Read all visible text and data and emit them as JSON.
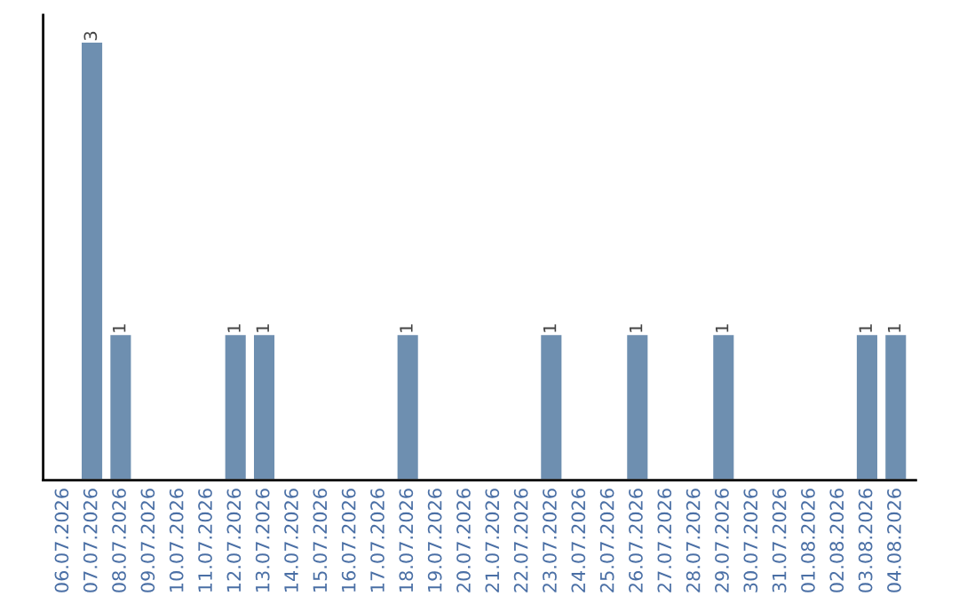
{
  "chart_data": {
    "type": "bar",
    "categories": [
      "06.07.2026",
      "07.07.2026",
      "08.07.2026",
      "09.07.2026",
      "10.07.2026",
      "11.07.2026",
      "12.07.2026",
      "13.07.2026",
      "14.07.2026",
      "15.07.2026",
      "16.07.2026",
      "17.07.2026",
      "18.07.2026",
      "19.07.2026",
      "20.07.2026",
      "21.07.2026",
      "22.07.2026",
      "23.07.2026",
      "24.07.2026",
      "25.07.2026",
      "26.07.2026",
      "27.07.2026",
      "28.07.2026",
      "29.07.2026",
      "30.07.2026",
      "31.07.2026",
      "01.08.2026",
      "02.08.2026",
      "03.08.2026",
      "04.08.2026"
    ],
    "values": [
      null,
      3,
      1,
      null,
      null,
      null,
      1,
      1,
      null,
      null,
      null,
      null,
      1,
      null,
      null,
      null,
      null,
      1,
      null,
      null,
      1,
      null,
      null,
      1,
      null,
      null,
      null,
      null,
      1,
      1
    ],
    "value_labels": [
      null,
      "3",
      "1",
      null,
      null,
      null,
      "1",
      "1",
      null,
      null,
      null,
      null,
      "1",
      null,
      null,
      null,
      null,
      "1",
      null,
      null,
      "1",
      null,
      null,
      "1",
      null,
      null,
      null,
      null,
      "1",
      "1"
    ],
    "color": "#6e8fb0",
    "grid": false,
    "legend": false
  }
}
